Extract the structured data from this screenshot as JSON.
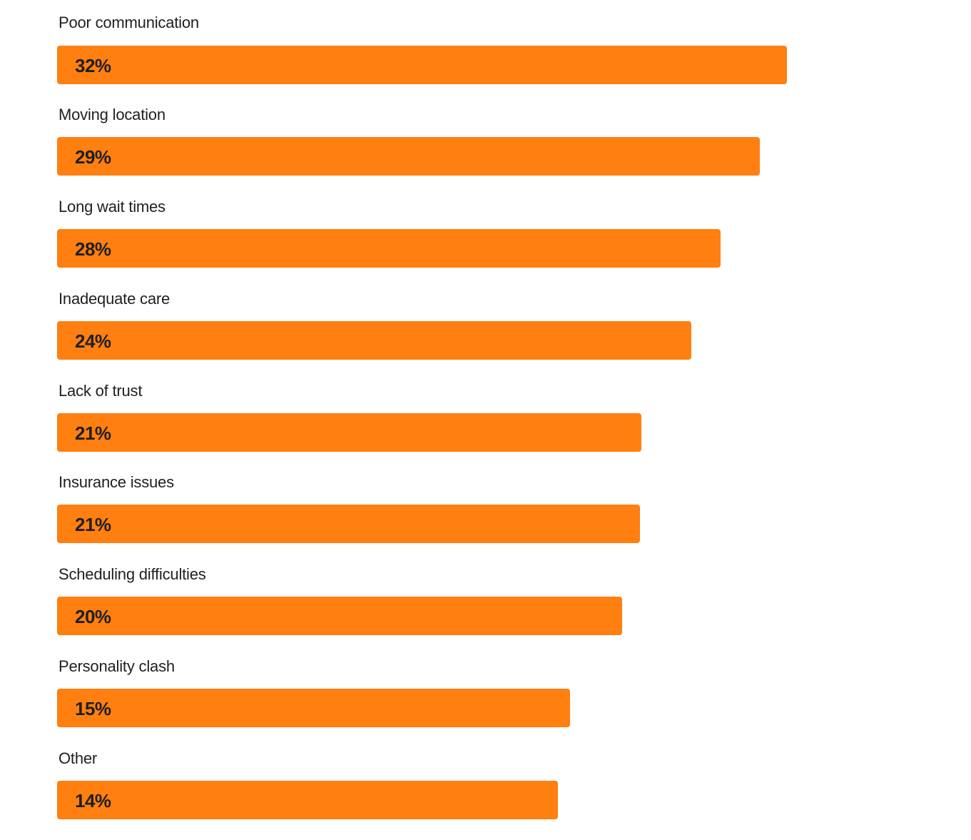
{
  "chart_data": {
    "type": "bar",
    "orientation": "horizontal",
    "categories": [
      "Poor communication",
      "Moving location",
      "Long wait times",
      "Inadequate care",
      "Lack of trust",
      "Insurance issues",
      "Scheduling difficulties",
      "Personality clash",
      "Other"
    ],
    "values": [
      32,
      29,
      28,
      24,
      21,
      21,
      20,
      15,
      14
    ],
    "value_labels": [
      "32%",
      "29%",
      "28%",
      "24%",
      "21%",
      "21%",
      "20%",
      "15%",
      "14%"
    ],
    "unit": "%",
    "bar_color": "#ff7f11",
    "text_color": "#1f1f1f",
    "grid": false,
    "legend": "none"
  }
}
